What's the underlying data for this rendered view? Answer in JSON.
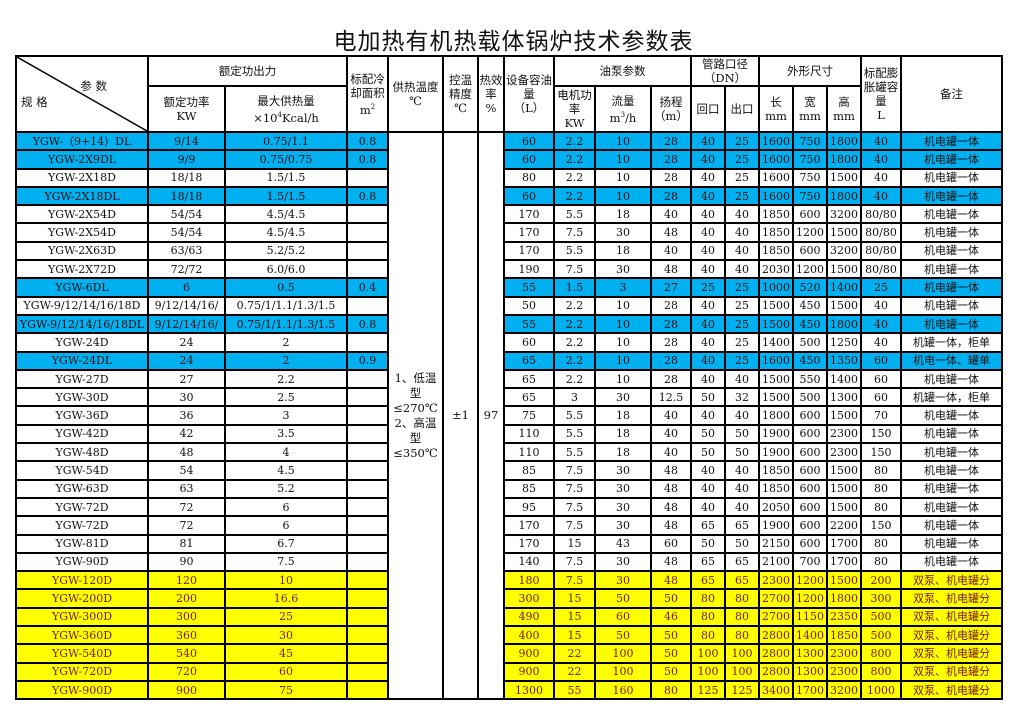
{
  "title": "电加热有机热载体锅炉技术参数表",
  "colors": {
    "blue": "#00b0f0",
    "yellow": "#ffff00"
  },
  "header": {
    "params": "参 数",
    "spec": "规 格",
    "rated_output": "额定功出力",
    "rated_power": "额定功率",
    "rated_power_unit": "KW",
    "max_heat": "最大供热量",
    "max_heat_unit_prefix": "×10",
    "max_heat_unit_exp": "4",
    "max_heat_unit_suffix": "Kcal/h",
    "cooling": "标配冷却面积",
    "cooling_unit": "m",
    "cooling_unit_exp": "2",
    "supply_temp": "供热温度",
    "supply_temp_unit": "℃",
    "precision": "控温精度",
    "precision_unit": "℃",
    "efficiency": "热效率",
    "efficiency_unit": "%",
    "oil_volume": "设备容油量",
    "oil_volume_unit": "（L）",
    "pump": "油泵参数",
    "motor": "电机功率",
    "motor_unit": "KW",
    "flow": "流量",
    "flow_unit_prefix": "m",
    "flow_unit_exp": "3",
    "flow_unit_suffix": "/h",
    "head": "扬程",
    "head_unit": "（m）",
    "pipe": "管路口径",
    "pipe_unit": "（DN）",
    "return": "回口",
    "outlet": "出口",
    "dims": "外形尺寸",
    "length": "长",
    "width": "宽",
    "height": "高",
    "mm": "mm",
    "tank": "标配膨胀罐容量",
    "tank_unit": "L",
    "remark": "备注"
  },
  "merged": {
    "supply_temp": "1、低温型≤270℃ 2、高温型≤350℃",
    "precision": "±1",
    "efficiency": "97"
  },
  "rows": [
    {
      "h": "blue",
      "v": [
        "YGW-（9+14）DL",
        "9/14",
        "0.75/1.1",
        "0.8",
        "60",
        "2.2",
        "10",
        "28",
        "40",
        "25",
        "1600",
        "750",
        "1800",
        "40",
        "机电罐一体"
      ]
    },
    {
      "h": "blue",
      "v": [
        "YGW-2X9DL",
        "9/9",
        "0.75/0.75",
        "0.8",
        "60",
        "2.2",
        "10",
        "28",
        "40",
        "25",
        "1600",
        "750",
        "1800",
        "40",
        "机电罐一体"
      ]
    },
    {
      "h": "",
      "v": [
        "YGW-2X18D",
        "18/18",
        "1.5/1.5",
        "",
        "80",
        "2.2",
        "10",
        "28",
        "40",
        "25",
        "1600",
        "750",
        "1500",
        "40",
        "机电罐一体"
      ]
    },
    {
      "h": "blue",
      "v": [
        "YGW-2X18DL",
        "18/18",
        "1.5/1.5",
        "0.8",
        "60",
        "2.2",
        "10",
        "28",
        "40",
        "25",
        "1600",
        "750",
        "1800",
        "40",
        "机电罐一体"
      ]
    },
    {
      "h": "",
      "v": [
        "YGW-2X54D",
        "54/54",
        "4.5/4.5",
        "",
        "170",
        "5.5",
        "18",
        "40",
        "40",
        "40",
        "1850",
        "600",
        "3200",
        "80/80",
        "机电罐一体"
      ]
    },
    {
      "h": "",
      "v": [
        "YGW-2X54D",
        "54/54",
        "4.5/4.5",
        "",
        "170",
        "7.5",
        "30",
        "48",
        "40",
        "40",
        "1850",
        "1200",
        "1500",
        "80/80",
        "机电罐一体"
      ]
    },
    {
      "h": "",
      "v": [
        "YGW-2X63D",
        "63/63",
        "5.2/5.2",
        "",
        "170",
        "5.5",
        "18",
        "40",
        "40",
        "40",
        "1850",
        "600",
        "3200",
        "80/80",
        "机电罐一体"
      ]
    },
    {
      "h": "",
      "v": [
        "YGW-2X72D",
        "72/72",
        "6.0/6.0",
        "",
        "190",
        "7.5",
        "30",
        "48",
        "40",
        "40",
        "2030",
        "1200",
        "1500",
        "80/80",
        "机电罐一体"
      ]
    },
    {
      "h": "blue",
      "v": [
        "YGW-6DL",
        "6",
        "0.5",
        "0.4",
        "55",
        "1.5",
        "3",
        "27",
        "25",
        "25",
        "1000",
        "520",
        "1400",
        "25",
        "机电罐一体"
      ]
    },
    {
      "h": "",
      "v": [
        "YGW-9/12/14/16/18D",
        "9/12/14/16/",
        "0.75/1/1.1/1.3/1.5",
        "",
        "50",
        "2.2",
        "10",
        "28",
        "40",
        "25",
        "1500",
        "450",
        "1500",
        "40",
        "机电罐一体"
      ]
    },
    {
      "h": "blue",
      "v": [
        "YGW-9/12/14/16/18DL",
        "9/12/14/16/",
        "0.75/1/1.1/1.3/1.5",
        "0.8",
        "55",
        "2.2",
        "10",
        "28",
        "40",
        "25",
        "1500",
        "450",
        "1800",
        "40",
        "机电罐一体"
      ]
    },
    {
      "h": "",
      "v": [
        "YGW-24D",
        "24",
        "2",
        "",
        "60",
        "2.2",
        "10",
        "28",
        "40",
        "25",
        "1400",
        "500",
        "1250",
        "40",
        "机罐一体，柜单"
      ]
    },
    {
      "h": "blue",
      "v": [
        "YGW-24DL",
        "24",
        "2",
        "0.9",
        "65",
        "2.2",
        "10",
        "28",
        "40",
        "25",
        "1600",
        "450",
        "1350",
        "60",
        "机电一体、罐单"
      ]
    },
    {
      "h": "",
      "v": [
        "YGW-27D",
        "27",
        "2.2",
        "",
        "65",
        "2.2",
        "10",
        "28",
        "40",
        "40",
        "1500",
        "550",
        "1400",
        "60",
        "机电罐一体"
      ]
    },
    {
      "h": "",
      "v": [
        "YGW-30D",
        "30",
        "2.5",
        "",
        "65",
        "3",
        "30",
        "12.5",
        "50",
        "32",
        "1500",
        "500",
        "1300",
        "60",
        "机罐一体，柜单"
      ]
    },
    {
      "h": "",
      "v": [
        "YGW-36D",
        "36",
        "3",
        "",
        "75",
        "5.5",
        "18",
        "40",
        "40",
        "40",
        "1800",
        "600",
        "1500",
        "70",
        "机电罐一体"
      ]
    },
    {
      "h": "",
      "v": [
        "YGW-42D",
        "42",
        "3.5",
        "",
        "110",
        "5.5",
        "18",
        "40",
        "50",
        "50",
        "1900",
        "600",
        "2300",
        "150",
        "机电罐一体"
      ]
    },
    {
      "h": "",
      "v": [
        "YGW-48D",
        "48",
        "4",
        "",
        "110",
        "5.5",
        "18",
        "40",
        "50",
        "50",
        "1900",
        "600",
        "2300",
        "150",
        "机电罐一体"
      ]
    },
    {
      "h": "",
      "v": [
        "YGW-54D",
        "54",
        "4.5",
        "",
        "85",
        "7.5",
        "30",
        "48",
        "40",
        "40",
        "1850",
        "600",
        "1500",
        "80",
        "机电罐一体"
      ]
    },
    {
      "h": "",
      "v": [
        "YGW-63D",
        "63",
        "5.2",
        "",
        "85",
        "7.5",
        "30",
        "48",
        "40",
        "40",
        "1850",
        "600",
        "1500",
        "80",
        "机电罐一体"
      ]
    },
    {
      "h": "",
      "v": [
        "YGW-72D",
        "72",
        "6",
        "",
        "95",
        "7.5",
        "30",
        "48",
        "40",
        "40",
        "2050",
        "600",
        "1500",
        "80",
        "机电罐一体"
      ]
    },
    {
      "h": "",
      "v": [
        "YGW-72D",
        "72",
        "6",
        "",
        "170",
        "7.5",
        "30",
        "48",
        "65",
        "65",
        "1900",
        "600",
        "2200",
        "150",
        "机电罐一体"
      ]
    },
    {
      "h": "",
      "v": [
        "YGW-81D",
        "81",
        "6.7",
        "",
        "170",
        "15",
        "43",
        "60",
        "50",
        "50",
        "2150",
        "600",
        "1700",
        "80",
        "机电罐一体"
      ]
    },
    {
      "h": "",
      "v": [
        "YGW-90D",
        "90",
        "7.5",
        "",
        "140",
        "7.5",
        "30",
        "48",
        "65",
        "65",
        "2100",
        "700",
        "1700",
        "80",
        "机电罐一体"
      ]
    },
    {
      "h": "yellow",
      "v": [
        "YGW-120D",
        "120",
        "10",
        "",
        "180",
        "7.5",
        "30",
        "48",
        "65",
        "65",
        "2300",
        "1200",
        "1500",
        "200",
        "双泵、机电罐分"
      ]
    },
    {
      "h": "yellow",
      "v": [
        "YGW-200D",
        "200",
        "16.6",
        "",
        "300",
        "15",
        "50",
        "50",
        "80",
        "80",
        "2700",
        "1200",
        "1800",
        "300",
        "双泵、机电罐分"
      ]
    },
    {
      "h": "yellow",
      "v": [
        "YGW-300D",
        "300",
        "25",
        "",
        "490",
        "15",
        "60",
        "46",
        "80",
        "80",
        "2700",
        "1150",
        "2350",
        "500",
        "双泵、机电罐分"
      ]
    },
    {
      "h": "yellow",
      "v": [
        "YGW-360D",
        "360",
        "30",
        "",
        "400",
        "15",
        "50",
        "50",
        "80",
        "80",
        "2800",
        "1400",
        "1850",
        "500",
        "双泵、机电罐分"
      ]
    },
    {
      "h": "yellow",
      "v": [
        "YGW-540D",
        "540",
        "45",
        "",
        "900",
        "22",
        "100",
        "50",
        "100",
        "100",
        "2800",
        "1300",
        "2300",
        "800",
        "双泵、机电罐分"
      ]
    },
    {
      "h": "yellow",
      "v": [
        "YGW-720D",
        "720",
        "60",
        "",
        "900",
        "22",
        "100",
        "50",
        "100",
        "100",
        "2800",
        "1300",
        "2300",
        "800",
        "双泵、机电罐分"
      ]
    },
    {
      "h": "yellow",
      "v": [
        "YGW-900D",
        "900",
        "75",
        "",
        "1300",
        "55",
        "160",
        "80",
        "125",
        "125",
        "3400",
        "1700",
        "3200",
        "1000",
        "双泵、机电罐分"
      ]
    }
  ]
}
